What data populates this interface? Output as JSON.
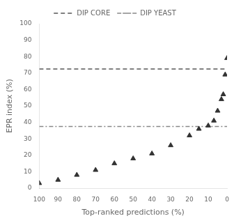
{
  "chart_data": {
    "type": "scatter",
    "xlabel": "Top-ranked predictions (%)",
    "ylabel": "EPR index (%)",
    "x": [
      100,
      90,
      80,
      70,
      60,
      50,
      40,
      30,
      20,
      15,
      10,
      7,
      5,
      3,
      2,
      1,
      0
    ],
    "values": [
      3,
      5,
      8,
      11,
      15,
      18,
      21,
      26,
      32,
      36,
      38,
      41,
      47,
      54,
      57,
      69,
      79
    ],
    "color": "#333333",
    "marker": "triangle",
    "lines": [
      {
        "name": "DIP CORE",
        "value": 72.5,
        "color": "#555555",
        "line_style": "dashed"
      },
      {
        "name": "DIP YEAST",
        "value": 37.5,
        "color": "#888888",
        "line_style": "dashdot"
      }
    ],
    "xlim": [
      100,
      0
    ],
    "ylim": [
      0,
      100
    ],
    "xticks": [
      100,
      90,
      80,
      70,
      60,
      50,
      40,
      30,
      20,
      10,
      0
    ],
    "yticks": [
      0,
      10,
      20,
      30,
      40,
      50,
      60,
      70,
      80,
      90,
      100
    ],
    "grid": false,
    "legend": "top"
  }
}
